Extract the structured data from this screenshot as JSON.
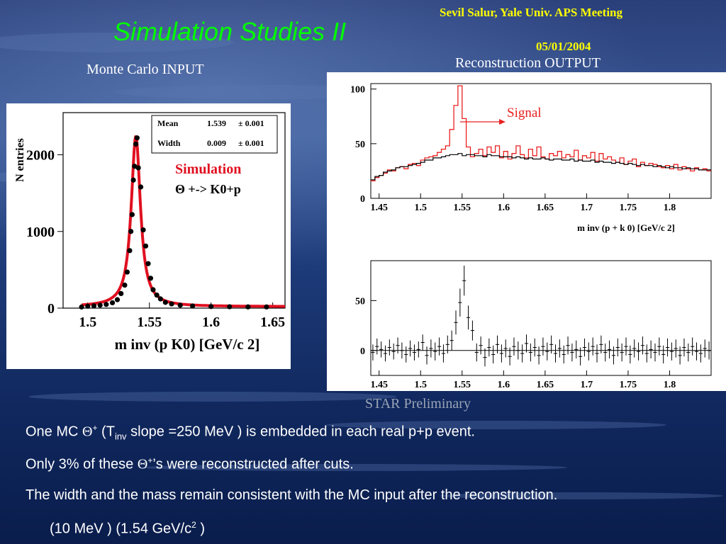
{
  "colors": {
    "title": "#00ff00",
    "header": "#ffff00",
    "white": "#ffffff",
    "gray": "#9aa4b4",
    "sim_red": "#e01020",
    "recon_red": "#e82020"
  },
  "header": {
    "author": "Sevil Salur, Yale Univ. APS Meeting",
    "date": "05/01/2004"
  },
  "slide_title": "Simulation  Studies  II",
  "left_caption": "Monte Carlo INPUT",
  "right_caption": "Reconstruction OUTPUT",
  "star_label": "STAR Preliminary",
  "bullets": {
    "b1_pre": "One MC ",
    "b1_theta": "Θ",
    "b1_sup": "+",
    "b1_mid": " (T",
    "b1_sub": "inv",
    "b1_post": " slope =250 MeV ) is embedded in each real p+p event.",
    "b2_pre": "Only 3% of these ",
    "b2_theta": "Θ",
    "b2_sup": "+",
    "b2_post": "’s were reconstructed after cuts.",
    "b3": "The width and the mass remain consistent with the MC input after the reconstruction.",
    "b4_pre": "(10 MeV )    (1.54 GeV/c",
    "b4_sup": "2",
    "b4_post": " )"
  },
  "chart_data": [
    {
      "type": "scatter",
      "panel": "monte-carlo-input",
      "xlabel": "m inv (p K0)   [GeV/c 2]",
      "ylabel": "N entries",
      "xlim": [
        1.48,
        1.66
      ],
      "ylim": [
        0,
        2550
      ],
      "xticks": [
        "1.5",
        "1.55",
        "1.6",
        "1.65"
      ],
      "yticks": [
        "0",
        "1000",
        "2000"
      ],
      "stats": [
        {
          "name": "Mean",
          "value": "1.539",
          "err": "± 0.001"
        },
        {
          "name": "Width",
          "value": "0.009",
          "err": "± 0.001"
        }
      ],
      "legend_title": "Simulation",
      "legend_process": "Θ +->   K0+p",
      "fit": {
        "mean": 1.539,
        "width": 0.009,
        "amp": 2230,
        "baseline": 20
      },
      "points": [
        [
          1.495,
          15
        ],
        [
          1.5,
          25
        ],
        [
          1.505,
          30
        ],
        [
          1.51,
          38
        ],
        [
          1.515,
          48
        ],
        [
          1.52,
          70
        ],
        [
          1.524,
          110
        ],
        [
          1.527,
          190
        ],
        [
          1.53,
          300
        ],
        [
          1.532,
          470
        ],
        [
          1.534,
          750
        ],
        [
          1.535,
          1000
        ],
        [
          1.536,
          1220
        ],
        [
          1.537,
          1670
        ],
        [
          1.538,
          1850
        ],
        [
          1.539,
          2140
        ],
        [
          1.54,
          2220
        ],
        [
          1.541,
          1830
        ],
        [
          1.543,
          1580
        ],
        [
          1.545,
          1020
        ],
        [
          1.547,
          810
        ],
        [
          1.549,
          580
        ],
        [
          1.551,
          390
        ],
        [
          1.553,
          240
        ],
        [
          1.556,
          170
        ],
        [
          1.559,
          120
        ],
        [
          1.563,
          75
        ],
        [
          1.568,
          55
        ],
        [
          1.575,
          38
        ],
        [
          1.585,
          28
        ],
        [
          1.6,
          20
        ],
        [
          1.615,
          18
        ],
        [
          1.63,
          16
        ],
        [
          1.645,
          15
        ]
      ]
    },
    {
      "type": "line",
      "panel": "reconstruction-output-top",
      "xlabel": "m inv (p + k 0)   [GeV/c 2]",
      "xlim": [
        1.44,
        1.85
      ],
      "ylim": [
        0,
        105
      ],
      "xticks": [
        "1.45",
        "1.5",
        "1.55",
        "1.6",
        "1.65",
        "1.7",
        "1.75",
        "1.8"
      ],
      "yticks": [
        "0",
        "50",
        "100"
      ],
      "annotation": "Signal",
      "series": [
        {
          "style": "red-histogram",
          "x0": 1.44,
          "bin": 0.005,
          "values": [
            16,
            19,
            21,
            23,
            26,
            25,
            28,
            29,
            27,
            31,
            32,
            30,
            35,
            37,
            38,
            39,
            42,
            45,
            48,
            63,
            85,
            103,
            73,
            47,
            38,
            41,
            45,
            39,
            47,
            42,
            48,
            37,
            43,
            36,
            41,
            48,
            40,
            37,
            45,
            39,
            47,
            38,
            36,
            41,
            39,
            43,
            37,
            40,
            38,
            44,
            35,
            39,
            37,
            42,
            34,
            41,
            36,
            38,
            35,
            33,
            37,
            31,
            34,
            36,
            29,
            33,
            30,
            32,
            31,
            29,
            28,
            30,
            27,
            31,
            26,
            29,
            27,
            25,
            28,
            26,
            27,
            25
          ]
        },
        {
          "style": "black-histogram",
          "x0": 1.44,
          "bin": 0.005,
          "values": [
            17,
            20,
            21,
            24,
            25,
            26,
            28,
            29,
            29,
            30,
            31,
            32,
            33,
            35,
            35,
            37,
            37,
            38,
            39,
            40,
            40,
            41,
            39,
            40,
            40,
            39,
            39,
            38,
            40,
            39,
            39,
            38,
            38,
            38,
            37,
            38,
            37,
            36,
            37,
            36,
            36,
            37,
            36,
            35,
            36,
            36,
            35,
            35,
            36,
            34,
            35,
            34,
            34,
            35,
            33,
            34,
            33,
            33,
            32,
            33,
            32,
            31,
            32,
            31,
            30,
            31,
            30,
            30,
            29,
            30,
            29,
            28,
            29,
            28,
            28,
            27,
            28,
            27,
            27,
            26,
            26,
            26
          ]
        }
      ]
    },
    {
      "type": "scatter",
      "panel": "reconstruction-output-bottom",
      "xlim": [
        1.44,
        1.85
      ],
      "ylim": [
        -25,
        90
      ],
      "xticks": [
        "1.45",
        "1.5",
        "1.55",
        "1.6",
        "1.65",
        "1.7",
        "1.75",
        "1.8"
      ],
      "yticks": [
        "0",
        "50"
      ],
      "x0": 1.44,
      "bin": 0.005,
      "values": [
        -2,
        4,
        1,
        -3,
        3,
        -1,
        5,
        0,
        -4,
        2,
        -2,
        1,
        8,
        -5,
        2,
        -1,
        4,
        -3,
        6,
        10,
        28,
        48,
        70,
        33,
        20,
        -2,
        5,
        -7,
        3,
        -4,
        6,
        -3,
        2,
        -6,
        4,
        0,
        -3,
        7,
        -2,
        3,
        -5,
        4,
        -1,
        6,
        -3,
        2,
        -4,
        5,
        -2,
        1,
        -6,
        3,
        -1,
        4,
        -3,
        6,
        -2,
        1,
        -5,
        3,
        -2,
        4,
        -4,
        2,
        -1,
        5,
        -3,
        1,
        -2,
        4,
        -4,
        3,
        -1,
        2,
        -5,
        3,
        -2,
        4,
        -1,
        -3,
        2,
        0
      ],
      "errors": [
        8,
        8,
        8,
        8,
        8,
        8,
        8,
        8,
        8,
        8,
        8,
        8,
        8,
        9,
        9,
        9,
        9,
        9,
        9,
        10,
        12,
        14,
        15,
        12,
        10,
        9,
        9,
        9,
        9,
        9,
        9,
        9,
        9,
        9,
        9,
        9,
        9,
        9,
        9,
        9,
        9,
        9,
        9,
        9,
        9,
        9,
        9,
        9,
        9,
        9,
        9,
        9,
        9,
        9,
        9,
        9,
        9,
        9,
        9,
        9,
        9,
        9,
        9,
        9,
        9,
        9,
        9,
        9,
        9,
        9,
        9,
        9,
        9,
        9,
        9,
        9,
        9,
        9,
        9,
        9,
        9,
        9
      ]
    }
  ]
}
